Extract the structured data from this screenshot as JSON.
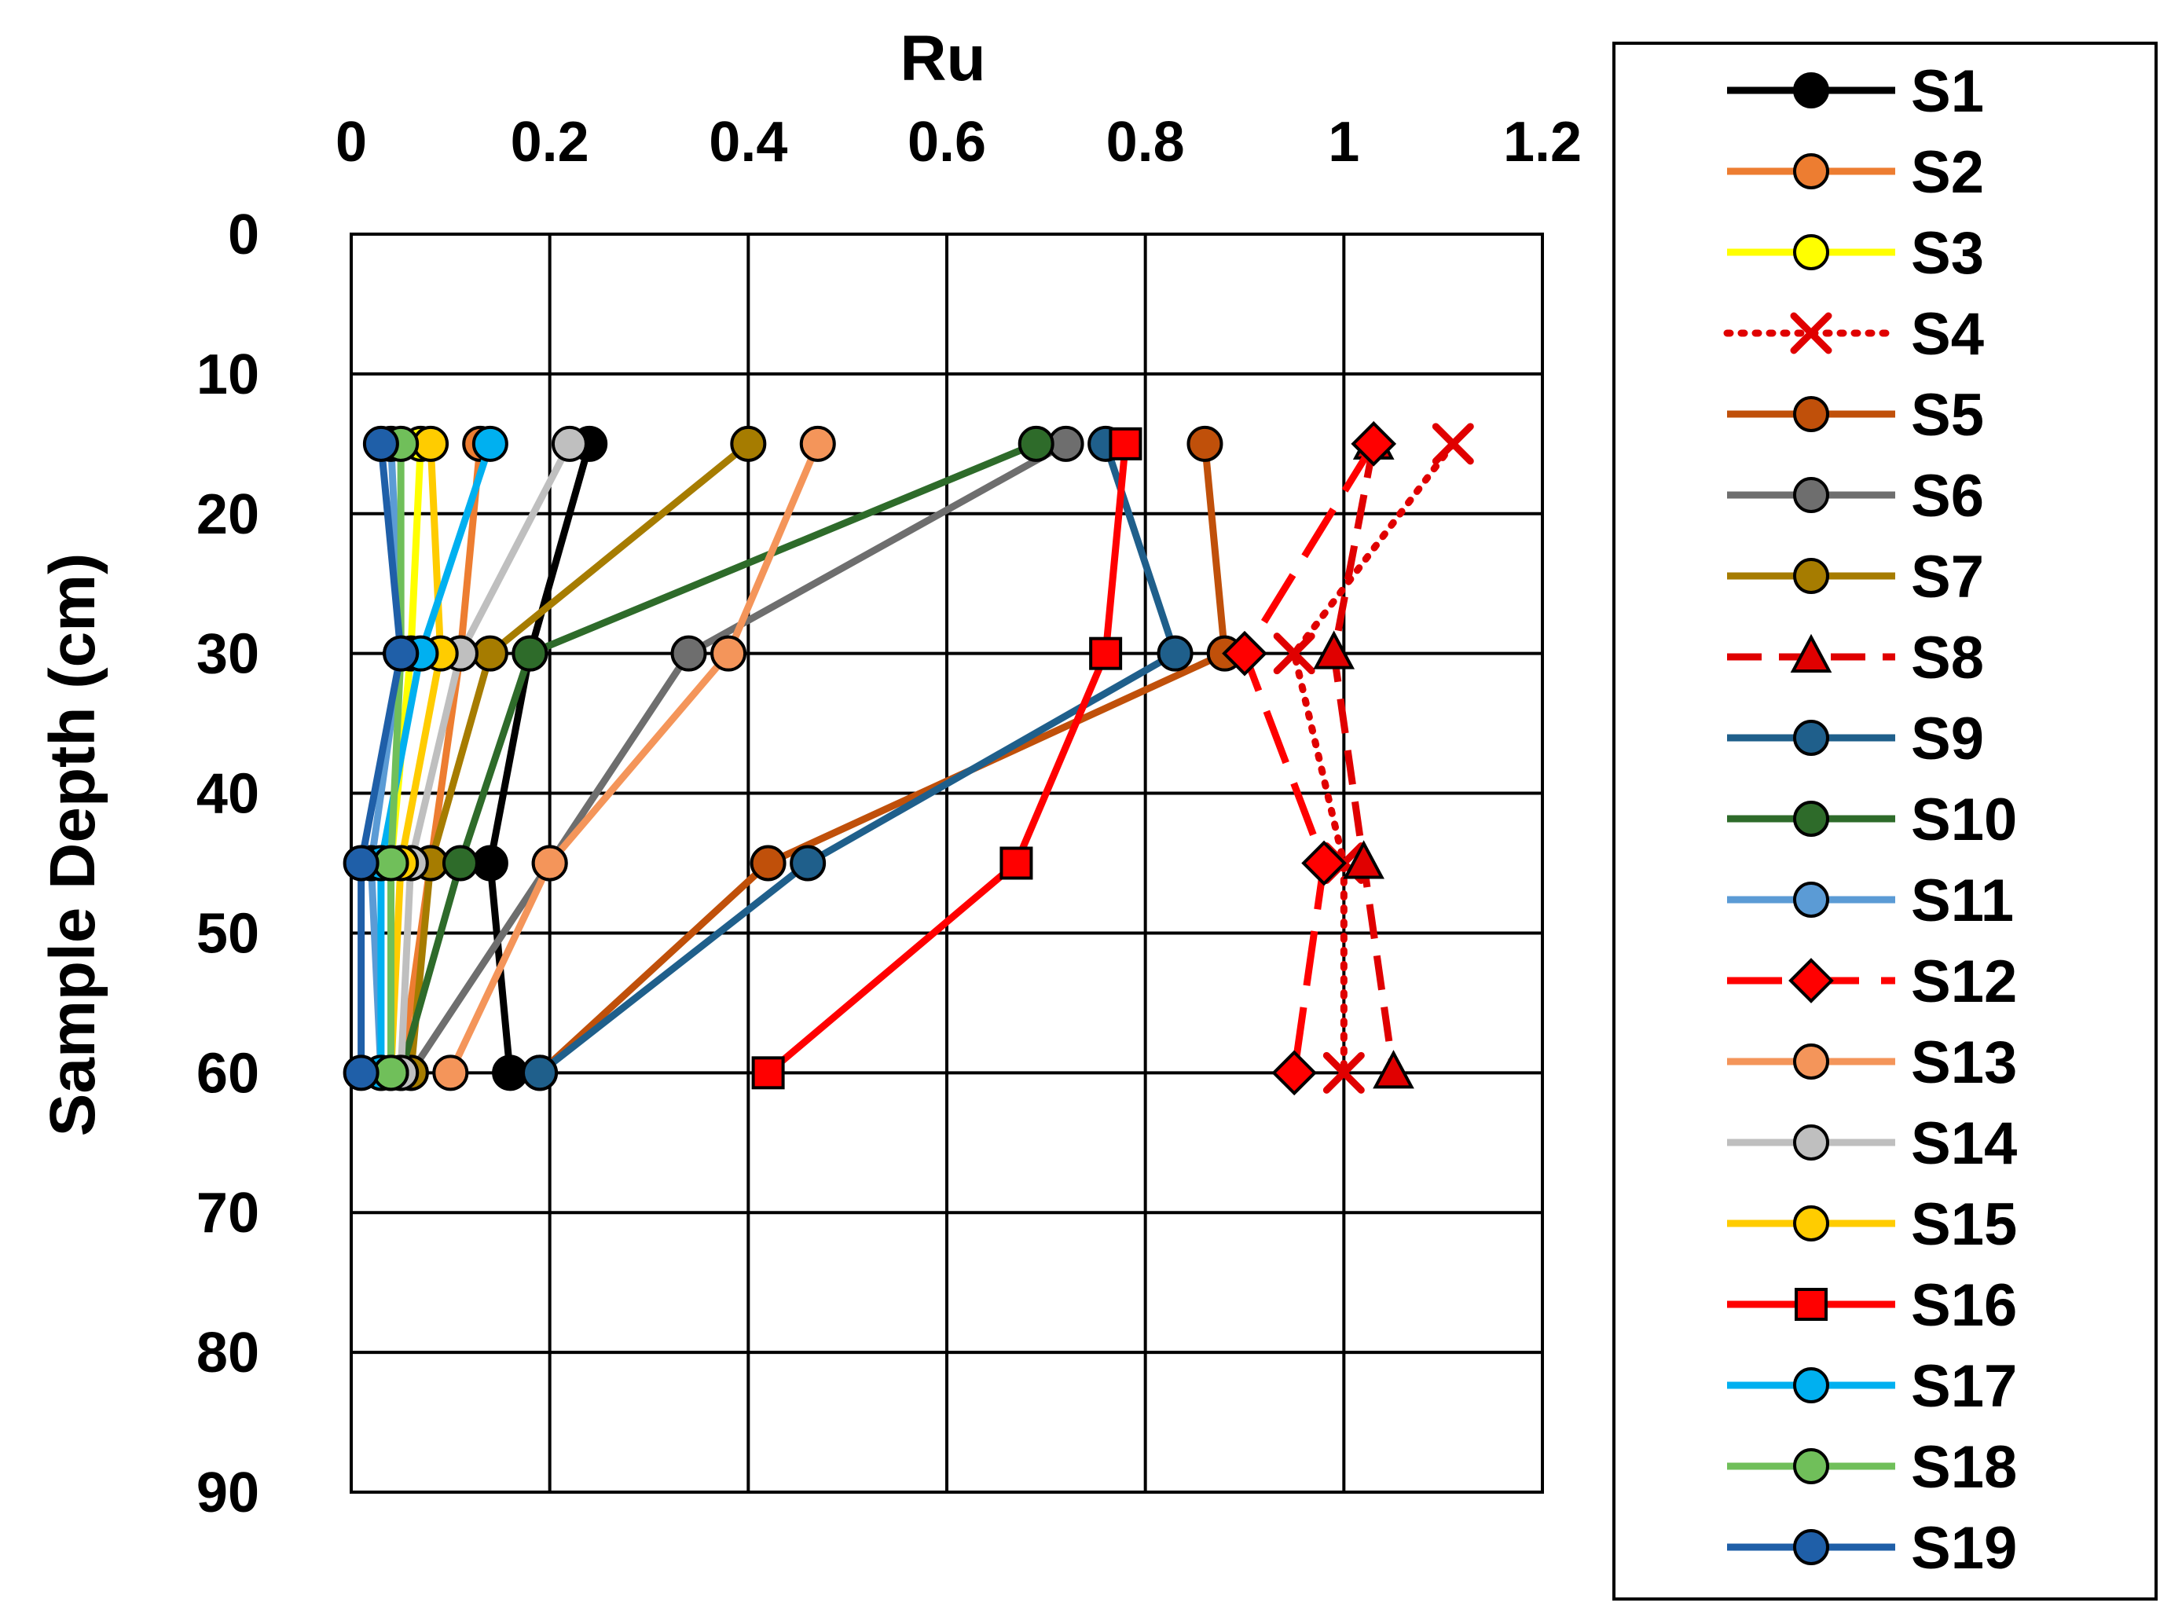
{
  "chart_data": {
    "type": "line",
    "title": "",
    "xlabel": "Ru",
    "ylabel": "Sample Depth (cm)",
    "x_axis_position": "top",
    "y_axis_inverted": true,
    "xlim": [
      0,
      1.2
    ],
    "ylim": [
      0,
      90
    ],
    "xticks": [
      0,
      0.2,
      0.4,
      0.6,
      0.8,
      1,
      1.2
    ],
    "xtick_labels": [
      "0",
      "0.2",
      "0.4",
      "0.6",
      "0.8",
      "1",
      "1.2"
    ],
    "yticks": [
      0,
      10,
      20,
      30,
      40,
      50,
      60,
      70,
      80,
      90
    ],
    "ytick_labels": [
      "0",
      "10",
      "20",
      "30",
      "40",
      "50",
      "60",
      "70",
      "80",
      "90"
    ],
    "grid": true,
    "legend_position": "right",
    "depths": [
      15,
      30,
      45,
      60
    ],
    "series": [
      {
        "name": "S1",
        "color": "#000000",
        "marker": "circle",
        "marker_fill": "#000000",
        "dash": "solid",
        "x": [
          0.24,
          0.18,
          0.14,
          0.16
        ]
      },
      {
        "name": "S2",
        "color": "#ED7D31",
        "marker": "circle",
        "marker_fill": "#ED7D31",
        "dash": "solid",
        "x": [
          0.13,
          0.11,
          0.08,
          0.05
        ]
      },
      {
        "name": "S3",
        "color": "#FFFF00",
        "marker": "circle",
        "marker_fill": "#FFFF00",
        "dash": "solid",
        "x": [
          0.07,
          0.06,
          0.04,
          0.04
        ]
      },
      {
        "name": "S4",
        "color": "#E00000",
        "marker": "x",
        "marker_fill": "#E00000",
        "dash": "dot",
        "x": [
          1.11,
          0.95,
          1.0,
          1.0
        ]
      },
      {
        "name": "S5",
        "color": "#C0500A",
        "marker": "circle",
        "marker_fill": "#C0500A",
        "dash": "solid",
        "x": [
          0.86,
          0.88,
          0.42,
          0.19
        ]
      },
      {
        "name": "S6",
        "color": "#6E6E6E",
        "marker": "circle",
        "marker_fill": "#6E6E6E",
        "dash": "solid",
        "x": [
          0.72,
          0.34,
          0.2,
          0.06
        ]
      },
      {
        "name": "S7",
        "color": "#A67C00",
        "marker": "circle",
        "marker_fill": "#A67C00",
        "dash": "solid",
        "x": [
          0.4,
          0.14,
          0.08,
          0.06
        ]
      },
      {
        "name": "S8",
        "color": "#E00000",
        "marker": "triangle",
        "marker_fill": "#E00000",
        "dash": "dash",
        "x": [
          1.03,
          0.99,
          1.02,
          1.05
        ]
      },
      {
        "name": "S9",
        "color": "#1F5F8B",
        "marker": "circle",
        "marker_fill": "#1F5F8B",
        "dash": "solid",
        "x": [
          0.76,
          0.83,
          0.46,
          0.19
        ]
      },
      {
        "name": "S10",
        "color": "#2E6B2A",
        "marker": "circle",
        "marker_fill": "#2E6B2A",
        "dash": "solid",
        "x": [
          0.69,
          0.18,
          0.11,
          0.05
        ]
      },
      {
        "name": "S11",
        "color": "#5B9BD5",
        "marker": "circle",
        "marker_fill": "#5B9BD5",
        "dash": "solid",
        "x": [
          0.04,
          0.05,
          0.02,
          0.03
        ]
      },
      {
        "name": "S12",
        "color": "#FF0000",
        "marker": "diamond",
        "marker_fill": "#FF0000",
        "dash": "longdash",
        "x": [
          1.03,
          0.9,
          0.98,
          0.95
        ]
      },
      {
        "name": "S13",
        "color": "#F4955A",
        "marker": "circle",
        "marker_fill": "#F4955A",
        "dash": "solid",
        "x": [
          0.47,
          0.38,
          0.2,
          0.1
        ]
      },
      {
        "name": "S14",
        "color": "#BFBFBF",
        "marker": "circle",
        "marker_fill": "#BFBFBF",
        "dash": "solid",
        "x": [
          0.22,
          0.11,
          0.06,
          0.05
        ]
      },
      {
        "name": "S15",
        "color": "#FFCC00",
        "marker": "circle",
        "marker_fill": "#FFCC00",
        "dash": "solid",
        "x": [
          0.08,
          0.09,
          0.05,
          0.04
        ]
      },
      {
        "name": "S16",
        "color": "#FF0000",
        "marker": "square",
        "marker_fill": "#FF0000",
        "dash": "solid",
        "x": [
          0.78,
          0.76,
          0.67,
          0.42
        ]
      },
      {
        "name": "S17",
        "color": "#00B0F0",
        "marker": "circle",
        "marker_fill": "#00B0F0",
        "dash": "solid",
        "x": [
          0.14,
          0.07,
          0.03,
          0.03
        ]
      },
      {
        "name": "S18",
        "color": "#70BF5A",
        "marker": "circle",
        "marker_fill": "#70BF5A",
        "dash": "solid",
        "x": [
          0.05,
          0.05,
          0.04,
          0.04
        ]
      },
      {
        "name": "S19",
        "color": "#1F5FA8",
        "marker": "circle",
        "marker_fill": "#1F5FA8",
        "dash": "solid",
        "x": [
          0.03,
          0.05,
          0.01,
          0.01
        ]
      }
    ]
  }
}
